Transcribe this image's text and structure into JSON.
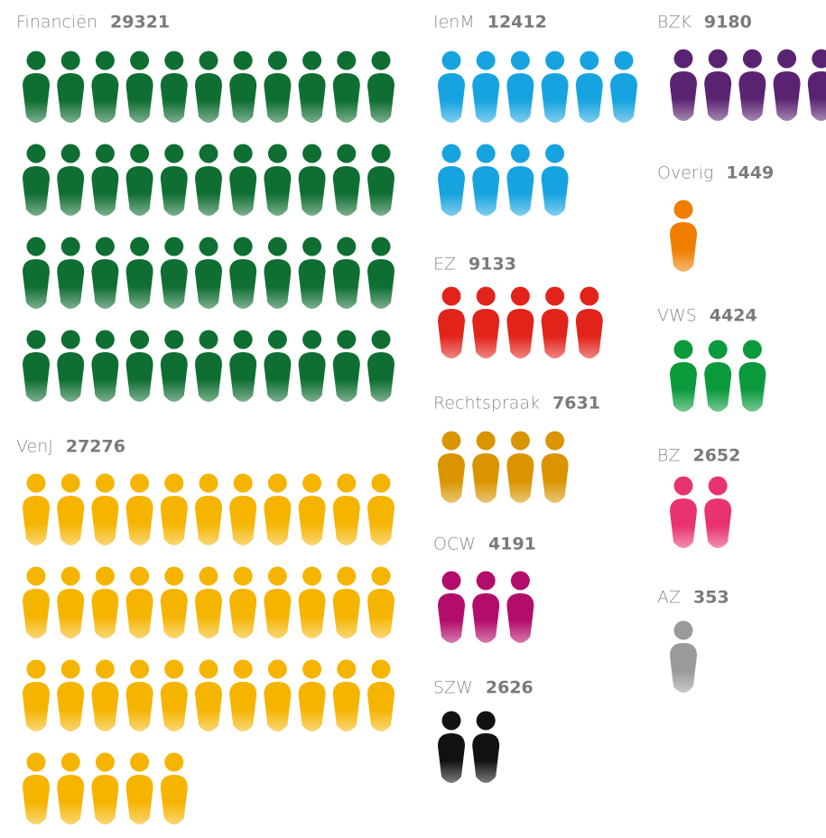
{
  "chart_data": {
    "type": "pictograph",
    "groups": [
      {
        "name": "Financiën",
        "value": 29321,
        "icons": 44,
        "color": "#0f6e32"
      },
      {
        "name": "VenJ",
        "value": 27276,
        "icons": 38,
        "color": "#f5b400"
      },
      {
        "name": "IenM",
        "value": 12412,
        "icons": 10,
        "color": "#17a3df"
      },
      {
        "name": "EZ",
        "value": 9133,
        "icons": 5,
        "color": "#e2231a"
      },
      {
        "name": "Rechtspraak",
        "value": 7631,
        "icons": 4,
        "color": "#d99400"
      },
      {
        "name": "OCW",
        "value": 4191,
        "icons": 3,
        "color": "#b30d6b"
      },
      {
        "name": "SZW",
        "value": 2626,
        "icons": 2,
        "color": "#111111"
      },
      {
        "name": "BZK",
        "value": 9180,
        "icons": 5,
        "color": "#5a2372"
      },
      {
        "name": "Overig",
        "value": 1449,
        "icons": 1,
        "color": "#f07d00"
      },
      {
        "name": "VWS",
        "value": 4424,
        "icons": 3,
        "color": "#0a9a3c"
      },
      {
        "name": "BZ",
        "value": 2652,
        "icons": 2,
        "color": "#e8336f"
      },
      {
        "name": "AZ",
        "value": 353,
        "icons": 1,
        "color": "#9a9a9a"
      }
    ]
  }
}
